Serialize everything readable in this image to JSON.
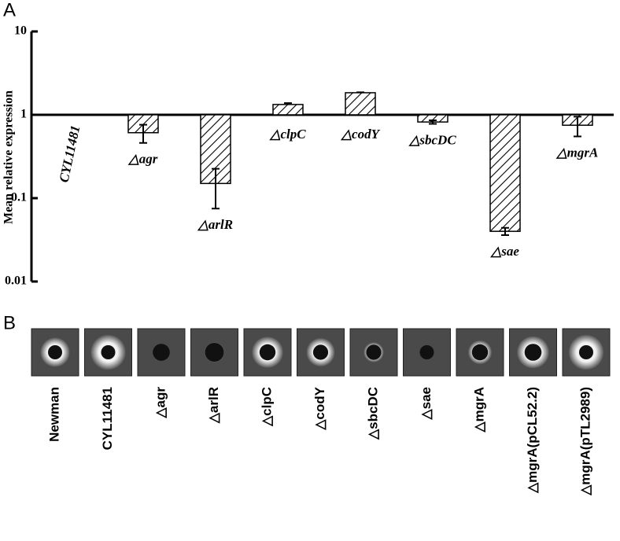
{
  "chart_data": {
    "type": "bar",
    "log_scale": true,
    "panel_label": "A",
    "ylabel": "Mean relative expression",
    "categories": [
      "CYL11481",
      "△agr",
      "△arlR",
      "△clpC",
      "△codY",
      "△sbcDC",
      "△sae",
      "△mgrA"
    ],
    "values": [
      1,
      0.61,
      0.15,
      1.33,
      1.84,
      0.82,
      0.04,
      0.75
    ],
    "errors": [
      null,
      0.15,
      0.075,
      0.05,
      0.02,
      0.04,
      0.004,
      0.2
    ],
    "color": "#ffffff",
    "ylim": [
      0.01,
      10
    ],
    "yticks": [
      0.01,
      0.1,
      1,
      10
    ]
  },
  "panel_b": {
    "label": "B",
    "strains": [
      "Newman",
      "CYL11481",
      "△agr",
      "△arlR",
      "△clpC",
      "△codY",
      "△sbcDC",
      "△sae",
      "△mgrA",
      "△mgrA(pCL52.2)",
      "△mgrA(pTL2989)"
    ]
  }
}
